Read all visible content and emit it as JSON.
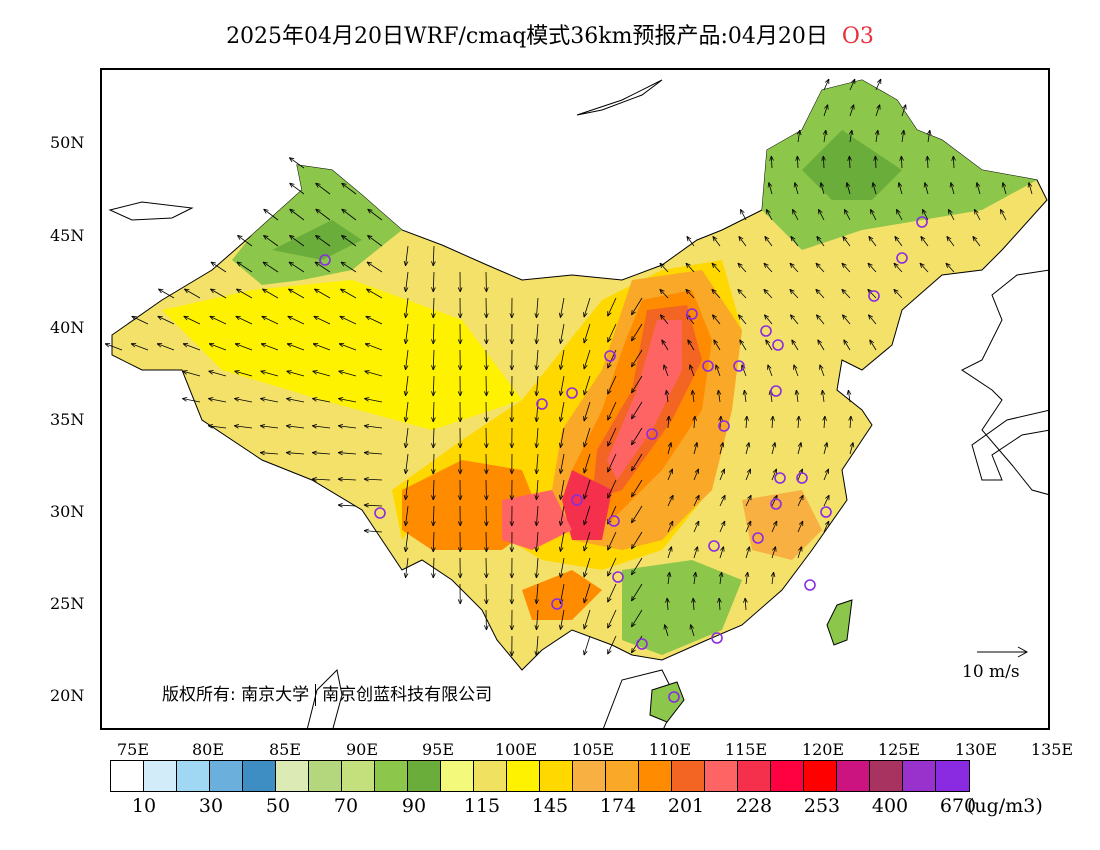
{
  "title": {
    "main": "2025年04月20日WRF/cmaq模式36km预报产品:04月20日",
    "species": "O3",
    "species_color": "#e8303a"
  },
  "map": {
    "type": "filled contour map with wind vectors",
    "lon_range": [
      73,
      135
    ],
    "lat_range": [
      18,
      54
    ],
    "lat_ticks": [
      "50N",
      "45N",
      "40N",
      "35N",
      "30N",
      "25N",
      "20N"
    ],
    "lon_ticks": [
      "75E",
      "80E",
      "85E",
      "90E",
      "95E",
      "100E",
      "105E",
      "110E",
      "115E",
      "120E",
      "125E",
      "130E",
      "135E"
    ],
    "copyright": {
      "left": "版权所有: 南京大学",
      "right": "南京创蓝科技有限公司"
    },
    "wind_reference_label": "10 m/s",
    "station_marker_color": "#8a2be2"
  },
  "legend": {
    "colors": [
      "#ffffff",
      "#d3ecfa",
      "#a0d8f3",
      "#6bb0dd",
      "#3e8ec4",
      "#dcebb5",
      "#b4d67c",
      "#c3e07c",
      "#8cc64b",
      "#6aad3a",
      "#f3f97a",
      "#f0e160",
      "#fff200",
      "#ffd800",
      "#f7b041",
      "#f9a827",
      "#ff8c00",
      "#f26522",
      "#ff6464",
      "#f5304d",
      "#ff0040",
      "#ff0000",
      "#cc1480",
      "#a83260",
      "#9932cc",
      "#8a2be2"
    ],
    "labels": [
      "10",
      "30",
      "50",
      "70",
      "90",
      "115",
      "145",
      "174",
      "201",
      "228",
      "253",
      "400",
      "670"
    ],
    "unit": "(ug/m3)"
  }
}
